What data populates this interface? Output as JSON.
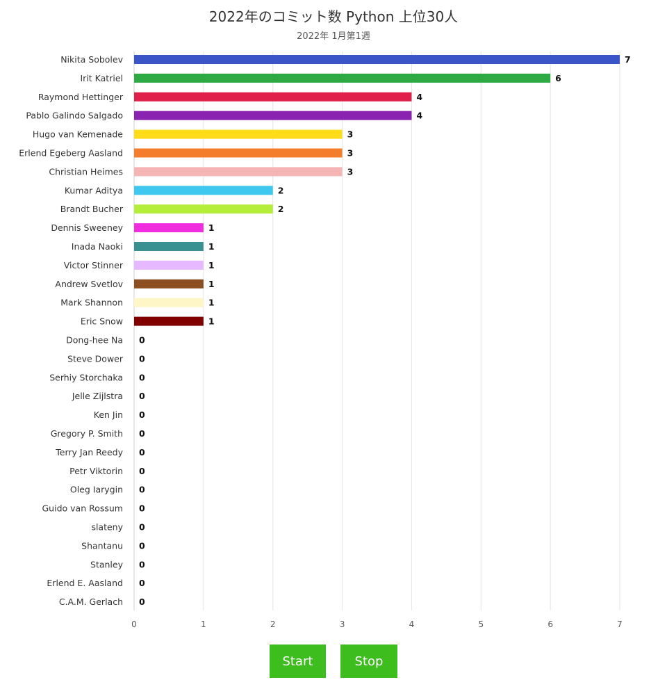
{
  "chart_data": {
    "type": "bar",
    "orientation": "horizontal",
    "title": "2022年のコミット数 Python 上位30人",
    "subtitle": "2022年 1月第1週",
    "xlim": [
      0,
      7
    ],
    "xticks": [
      0,
      1,
      2,
      3,
      4,
      5,
      6,
      7
    ],
    "grid": true,
    "categories": [
      "Nikita Sobolev",
      "Irit Katriel",
      "Raymond Hettinger",
      "Pablo Galindo Salgado",
      "Hugo van Kemenade",
      "Erlend Egeberg Aasland",
      "Christian Heimes",
      "Kumar Aditya",
      "Brandt Bucher",
      "Dennis Sweeney",
      "Inada Naoki",
      "Victor Stinner",
      "Andrew Svetlov",
      "Mark Shannon",
      "Eric Snow",
      "Dong-hee Na",
      "Steve Dower",
      "Serhiy Storchaka",
      "Jelle Zijlstra",
      "Ken Jin",
      "Gregory P. Smith",
      "Terry Jan Reedy",
      "Petr Viktorin",
      "Oleg Iarygin",
      "Guido van Rossum",
      "slateny",
      "Shantanu",
      "Stanley",
      "Erlend E. Aasland",
      "C.A.M. Gerlach"
    ],
    "values": [
      7,
      6,
      4,
      4,
      3,
      3,
      3,
      2,
      2,
      1,
      1,
      1,
      1,
      1,
      1,
      0,
      0,
      0,
      0,
      0,
      0,
      0,
      0,
      0,
      0,
      0,
      0,
      0,
      0,
      0
    ],
    "colors": [
      "#3a55c8",
      "#2eaa44",
      "#e01f4a",
      "#8a24b0",
      "#ffdc1a",
      "#f47d2c",
      "#f5b5b5",
      "#3ec8f0",
      "#b4ee3a",
      "#f02ee0",
      "#3a9090",
      "#e6b8ff",
      "#8c4f22",
      "#fff6c8",
      "#800000",
      "#aaaaaa",
      "#aaaaaa",
      "#aaaaaa",
      "#aaaaaa",
      "#aaaaaa",
      "#aaaaaa",
      "#aaaaaa",
      "#aaaaaa",
      "#aaaaaa",
      "#aaaaaa",
      "#aaaaaa",
      "#aaaaaa",
      "#aaaaaa",
      "#aaaaaa",
      "#aaaaaa"
    ]
  },
  "controls": {
    "start_label": "Start",
    "stop_label": "Stop"
  }
}
